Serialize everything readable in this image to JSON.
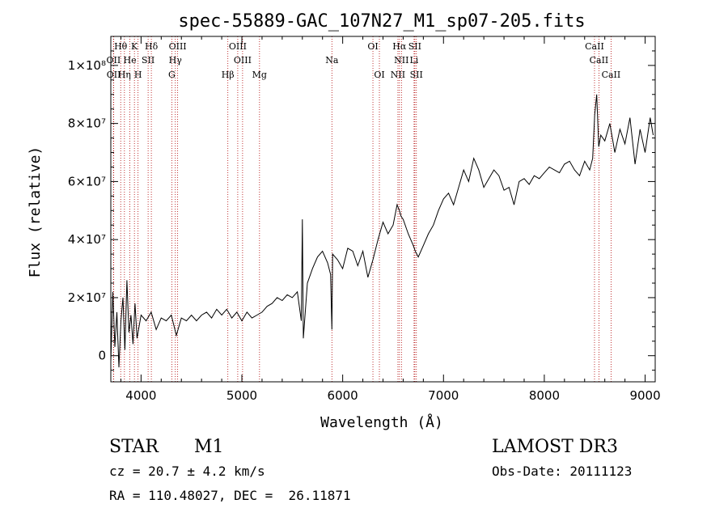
{
  "chart_data": {
    "type": "line",
    "title": "spec-55889-GAC_107N27_M1_sp07-205.fits",
    "xlabel": "Wavelength (Å)",
    "ylabel": "Flux (relative)",
    "xlim": [
      3700,
      9100
    ],
    "ylim": [
      -9000000,
      110000000
    ],
    "xticks": [
      4000,
      5000,
      6000,
      7000,
      8000,
      9000
    ],
    "xtick_labels": [
      "4000",
      "5000",
      "6000",
      "7000",
      "8000",
      "9000"
    ],
    "yticks": [
      0,
      20000000,
      40000000,
      60000000,
      80000000,
      100000000
    ],
    "ytick_labels": [
      "0",
      "2×10⁷",
      "4×10⁷",
      "6×10⁷",
      "8×10⁷",
      "1×10⁸"
    ],
    "spectral_lines": [
      {
        "label": "Hθ",
        "x": 3798,
        "row": 0
      },
      {
        "label": "K",
        "x": 3934,
        "row": 0
      },
      {
        "label": "Hδ",
        "x": 4102,
        "row": 0
      },
      {
        "label": "OIII",
        "x": 4363,
        "row": 0
      },
      {
        "label": "OIII",
        "x": 4959,
        "row": 0
      },
      {
        "label": "OI",
        "x": 6300,
        "row": 0
      },
      {
        "label": "Hα",
        "x": 6563,
        "row": 0
      },
      {
        "label": "SII",
        "x": 6716,
        "row": 0
      },
      {
        "label": "CaII",
        "x": 8498,
        "row": 0
      },
      {
        "label": "OII",
        "x": 3727,
        "row": 1
      },
      {
        "label": "He",
        "x": 3889,
        "row": 1
      },
      {
        "label": "SII",
        "x": 4070,
        "row": 1
      },
      {
        "label": "Hγ",
        "x": 4340,
        "row": 1
      },
      {
        "label": "OIII",
        "x": 5007,
        "row": 1
      },
      {
        "label": "Na",
        "x": 5893,
        "row": 1
      },
      {
        "label": "NII",
        "x": 6583,
        "row": 1
      },
      {
        "label": "Li",
        "x": 6708,
        "row": 1
      },
      {
        "label": "CaII",
        "x": 8542,
        "row": 1
      },
      {
        "label": "OII",
        "x": 3729,
        "row": 2
      },
      {
        "label": "Hη",
        "x": 3835,
        "row": 2
      },
      {
        "label": "H",
        "x": 3970,
        "row": 2
      },
      {
        "label": "G",
        "x": 4305,
        "row": 2
      },
      {
        "label": "Hβ",
        "x": 4861,
        "row": 2
      },
      {
        "label": "Mg",
        "x": 5175,
        "row": 2
      },
      {
        "label": "OI",
        "x": 6364,
        "row": 2
      },
      {
        "label": "NII",
        "x": 6548,
        "row": 2
      },
      {
        "label": "SII",
        "x": 6731,
        "row": 2
      },
      {
        "label": "CaII",
        "x": 8662,
        "row": 2
      }
    ],
    "series": [
      {
        "name": "flux",
        "x": [
          3700,
          3720,
          3740,
          3760,
          3780,
          3800,
          3820,
          3840,
          3860,
          3880,
          3900,
          3920,
          3940,
          3960,
          3980,
          4000,
          4050,
          4100,
          4150,
          4200,
          4250,
          4300,
          4350,
          4400,
          4450,
          4500,
          4550,
          4600,
          4650,
          4700,
          4750,
          4800,
          4850,
          4900,
          4950,
          5000,
          5050,
          5100,
          5150,
          5200,
          5250,
          5300,
          5350,
          5400,
          5450,
          5500,
          5550,
          5590,
          5600,
          5610,
          5650,
          5700,
          5750,
          5800,
          5850,
          5880,
          5893,
          5900,
          5950,
          6000,
          6050,
          6100,
          6150,
          6200,
          6250,
          6300,
          6350,
          6400,
          6450,
          6500,
          6540,
          6563,
          6580,
          6600,
          6650,
          6700,
          6720,
          6750,
          6800,
          6850,
          6900,
          6950,
          7000,
          7050,
          7100,
          7150,
          7200,
          7250,
          7300,
          7350,
          7400,
          7450,
          7500,
          7550,
          7600,
          7650,
          7700,
          7750,
          7800,
          7850,
          7900,
          7950,
          8000,
          8050,
          8100,
          8150,
          8200,
          8250,
          8300,
          8350,
          8400,
          8450,
          8480,
          8500,
          8520,
          8540,
          8560,
          8600,
          8650,
          8700,
          8750,
          8800,
          8850,
          8900,
          8950,
          9000,
          9050,
          9080
        ],
        "y": [
          -2000000,
          22000000,
          3000000,
          15000000,
          -4000000,
          12000000,
          20000000,
          2000000,
          26000000,
          8000000,
          14000000,
          4000000,
          18000000,
          6000000,
          10000000,
          14000000,
          12000000,
          15000000,
          9000000,
          13000000,
          12000000,
          14000000,
          7000000,
          13000000,
          12000000,
          14000000,
          12000000,
          14000000,
          15000000,
          13000000,
          16000000,
          14000000,
          16000000,
          13000000,
          15000000,
          12000000,
          15000000,
          13000000,
          14000000,
          15000000,
          17000000,
          18000000,
          20000000,
          19000000,
          21000000,
          20000000,
          22000000,
          12000000,
          47000000,
          6000000,
          25000000,
          30000000,
          34000000,
          36000000,
          32000000,
          28000000,
          9000000,
          35000000,
          33000000,
          30000000,
          37000000,
          36000000,
          31000000,
          36000000,
          27000000,
          33000000,
          40000000,
          46000000,
          42000000,
          45000000,
          52000000,
          50000000,
          48000000,
          47000000,
          42000000,
          38000000,
          36000000,
          34000000,
          38000000,
          42000000,
          45000000,
          50000000,
          54000000,
          56000000,
          52000000,
          58000000,
          64000000,
          60000000,
          68000000,
          64000000,
          58000000,
          61000000,
          64000000,
          62000000,
          57000000,
          58000000,
          52000000,
          60000000,
          61000000,
          59000000,
          62000000,
          61000000,
          63000000,
          65000000,
          64000000,
          63000000,
          66000000,
          67000000,
          64000000,
          62000000,
          67000000,
          64000000,
          68000000,
          83000000,
          90000000,
          72000000,
          76000000,
          74000000,
          80000000,
          70000000,
          78000000,
          73000000,
          82000000,
          66000000,
          78000000,
          70000000,
          82000000,
          76000000
        ]
      }
    ]
  },
  "info": {
    "object_class": "STAR",
    "subclass": "M1",
    "survey": "LAMOST DR3",
    "cz": "cz = 20.7 ± 4.2 km/s",
    "obs_date": "Obs-Date: 20111123",
    "coords": "RA = 110.48027, DEC =  26.11871"
  }
}
